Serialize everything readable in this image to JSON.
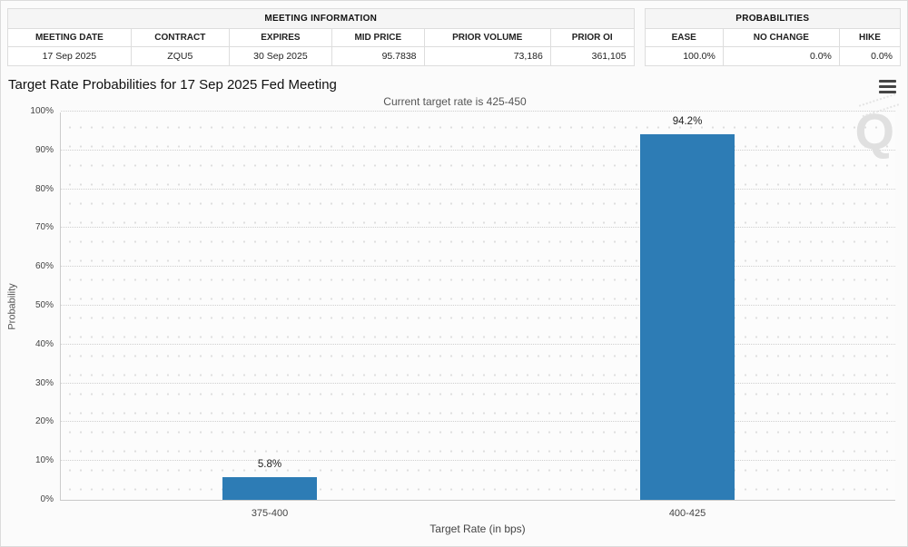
{
  "meeting_info": {
    "title": "MEETING INFORMATION",
    "columns": [
      "MEETING DATE",
      "CONTRACT",
      "EXPIRES",
      "MID PRICE",
      "PRIOR VOLUME",
      "PRIOR OI"
    ],
    "values": [
      "17 Sep 2025",
      "ZQU5",
      "30 Sep 2025",
      "95.7838",
      "73,186",
      "361,105"
    ]
  },
  "probabilities": {
    "title": "PROBABILITIES",
    "columns": [
      "EASE",
      "NO CHANGE",
      "HIKE"
    ],
    "values": [
      "100.0%",
      "0.0%",
      "0.0%"
    ]
  },
  "watermark_letter": "Q",
  "chart_data": {
    "type": "bar",
    "title": "Target Rate Probabilities for 17 Sep 2025 Fed Meeting",
    "subtitle": "Current target rate is 425-450",
    "categories": [
      "375-400",
      "400-425"
    ],
    "values": [
      5.8,
      94.2
    ],
    "value_labels": [
      "5.8%",
      "94.2%"
    ],
    "xlabel": "Target Rate (in bps)",
    "ylabel": "Probability",
    "ylim": [
      0,
      100
    ],
    "ytick_step": 10,
    "ytick_suffix": "%",
    "bar_color": "#2d7cb5",
    "grid": true,
    "legend": false
  }
}
